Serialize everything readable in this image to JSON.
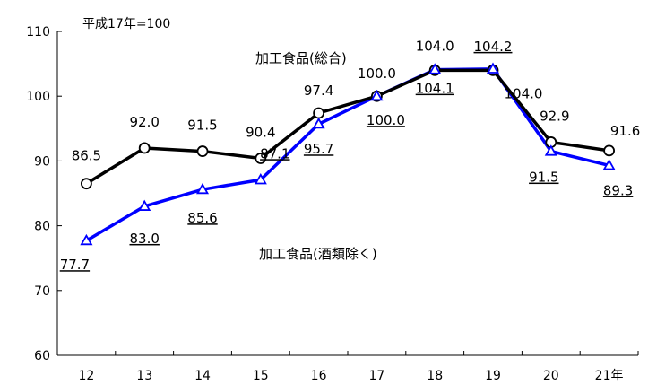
{
  "chart_data": {
    "type": "line",
    "base_note": "平成17年=100",
    "categories": [
      "12",
      "13",
      "14",
      "15",
      "16",
      "17",
      "18",
      "19",
      "20",
      "21年"
    ],
    "ylim": [
      60,
      110
    ],
    "yticks": [
      "60",
      "70",
      "80",
      "90",
      "100",
      "110"
    ],
    "grid": false,
    "series": [
      {
        "name": "加工食品(総合)",
        "values": [
          86.5,
          92.0,
          91.5,
          90.4,
          97.4,
          100.0,
          104.0,
          104.0,
          92.9,
          91.6
        ],
        "labels": [
          "86.5",
          "92.0",
          "91.5",
          "90.4",
          "97.4",
          "100.0",
          "104.0",
          "104.0",
          "92.9",
          "91.6"
        ],
        "color": "#000000",
        "marker": "circle",
        "label_underline": false
      },
      {
        "name": "加工食品(酒類除く)",
        "values": [
          77.7,
          83.0,
          85.6,
          87.1,
          95.7,
          100.0,
          104.1,
          104.2,
          91.5,
          89.3
        ],
        "labels": [
          "77.7",
          "83.0",
          "85.6",
          "87.1",
          "95.7",
          "100.0",
          "104.1",
          "104.2",
          "91.5",
          "89.3"
        ],
        "color": "#0000ff",
        "marker": "triangle",
        "label_underline": true
      }
    ]
  }
}
